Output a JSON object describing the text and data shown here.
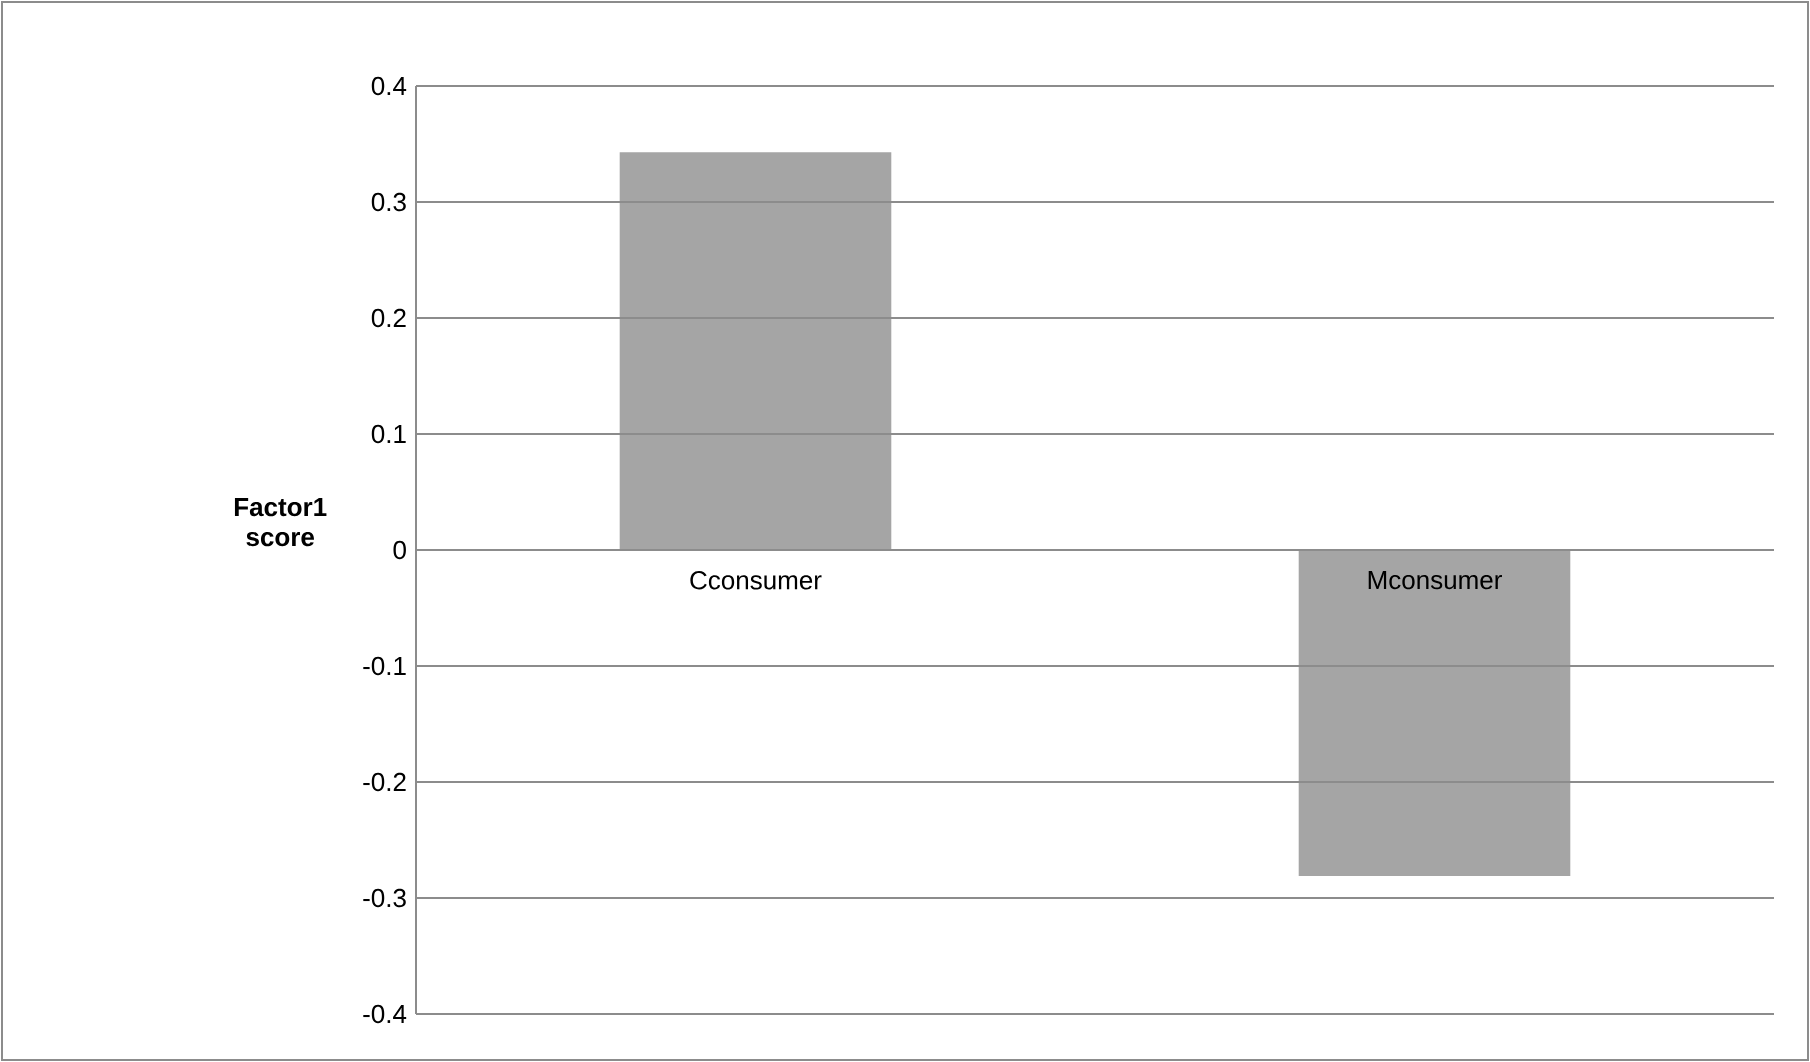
{
  "chart_data": {
    "type": "bar",
    "ylabel": "Factor1 score",
    "categories": [
      "Cconsumer",
      "Mconsumer"
    ],
    "values": [
      0.343,
      -0.281
    ],
    "color": "#a5a5a5",
    "ylim": [
      -0.4,
      0.4
    ],
    "yticks": [
      -0.4,
      -0.3,
      -0.2,
      -0.1,
      0,
      0.1,
      0.2,
      0.3,
      0.4
    ],
    "grid": "y"
  }
}
